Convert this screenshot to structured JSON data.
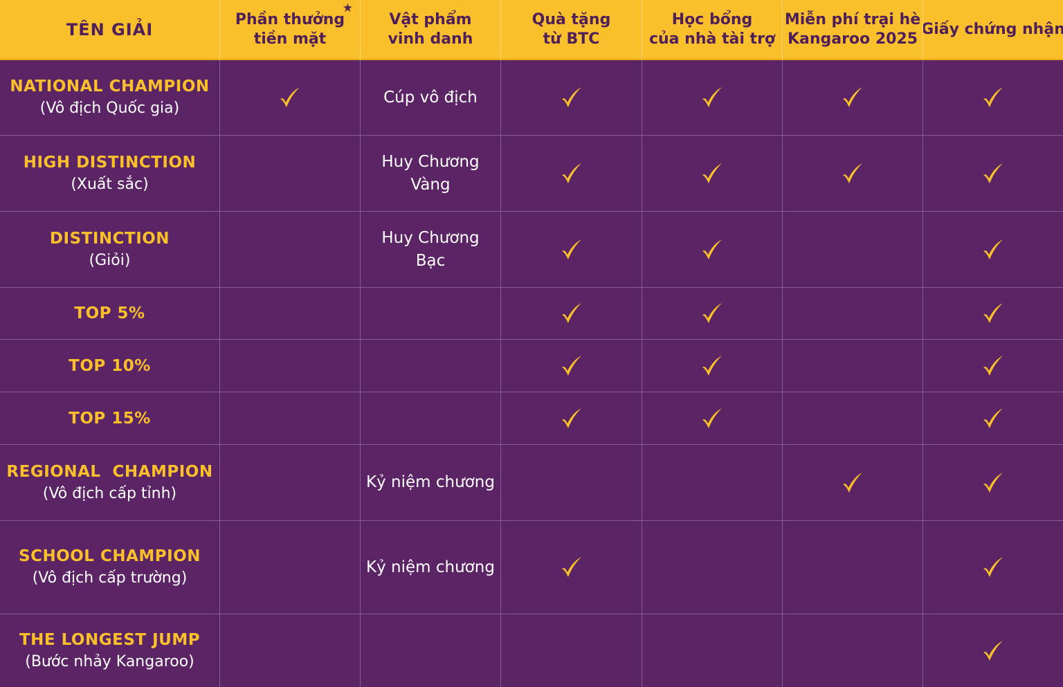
{
  "colors": {
    "header_bg": "#f9c02b",
    "header_text": "#4f1f5a",
    "body_bg": "#5b2464",
    "award_name": "#f9c02b",
    "body_text": "#ffffff",
    "check": "#f9c02b",
    "grid_line": "#8d5a98"
  },
  "header": {
    "award_name": "TÊN GIẢI",
    "cash_prize": {
      "line1": "Phần thưởng",
      "line2": "tiền mặt",
      "marker": "★"
    },
    "honor_item": {
      "line1": "Vật phẩm",
      "line2": "vinh danh"
    },
    "btc_gift": {
      "line1": "Quà tặng",
      "line2": "từ BTC"
    },
    "sponsor_scholarship": {
      "line1": "Học bổng",
      "line2": "của nhà tài trợ"
    },
    "summer_camp": {
      "line1": "Miễn phí trại hè",
      "line2": "Kangaroo 2025"
    },
    "certificate": {
      "line1": "Giấy chứng nhận"
    }
  },
  "check_icon": "check-icon",
  "rows": [
    {
      "name_en": "NATIONAL CHAMPION",
      "name_vi": "(Vô địch Quốc gia)",
      "cash_prize": true,
      "honor_item_line1": "Cúp vô địch",
      "honor_item_line2": "",
      "btc_gift": true,
      "sponsor_scholarship": true,
      "summer_camp": true,
      "certificate": true
    },
    {
      "name_en": "HIGH DISTINCTION",
      "name_vi": "(Xuất sắc)",
      "cash_prize": false,
      "honor_item_line1": "Huy Chương",
      "honor_item_line2": "Vàng",
      "btc_gift": true,
      "sponsor_scholarship": true,
      "summer_camp": true,
      "certificate": true
    },
    {
      "name_en": "DISTINCTION",
      "name_vi": "(Giỏi)",
      "cash_prize": false,
      "honor_item_line1": "Huy Chương",
      "honor_item_line2": "Bạc",
      "btc_gift": true,
      "sponsor_scholarship": true,
      "summer_camp": false,
      "certificate": true
    },
    {
      "name_en": "TOP 5%",
      "name_vi": "",
      "cash_prize": false,
      "honor_item_line1": "",
      "honor_item_line2": "",
      "btc_gift": true,
      "sponsor_scholarship": true,
      "summer_camp": false,
      "certificate": true
    },
    {
      "name_en": "TOP 10%",
      "name_vi": "",
      "cash_prize": false,
      "honor_item_line1": "",
      "honor_item_line2": "",
      "btc_gift": true,
      "sponsor_scholarship": true,
      "summer_camp": false,
      "certificate": true
    },
    {
      "name_en": "TOP 15%",
      "name_vi": "",
      "cash_prize": false,
      "honor_item_line1": "",
      "honor_item_line2": "",
      "btc_gift": true,
      "sponsor_scholarship": true,
      "summer_camp": false,
      "certificate": true
    },
    {
      "name_en": "REGIONAL  CHAMPION",
      "name_vi": "(Vô địch cấp tỉnh)",
      "cash_prize": false,
      "honor_item_line1": "Kỷ niệm chương",
      "honor_item_line2": "",
      "btc_gift": false,
      "sponsor_scholarship": false,
      "summer_camp": true,
      "certificate": true
    },
    {
      "name_en": "SCHOOL CHAMPION",
      "name_vi": "(Vô địch cấp trường)",
      "cash_prize": false,
      "honor_item_line1": "Kỷ niệm chương",
      "honor_item_line2": "",
      "btc_gift": true,
      "sponsor_scholarship": false,
      "summer_camp": false,
      "certificate": true
    },
    {
      "name_en": "THE LONGEST JUMP",
      "name_vi": "(Bước nhảy Kangaroo)",
      "cash_prize": false,
      "honor_item_line1": "",
      "honor_item_line2": "",
      "btc_gift": false,
      "sponsor_scholarship": false,
      "summer_camp": false,
      "certificate": true
    }
  ]
}
